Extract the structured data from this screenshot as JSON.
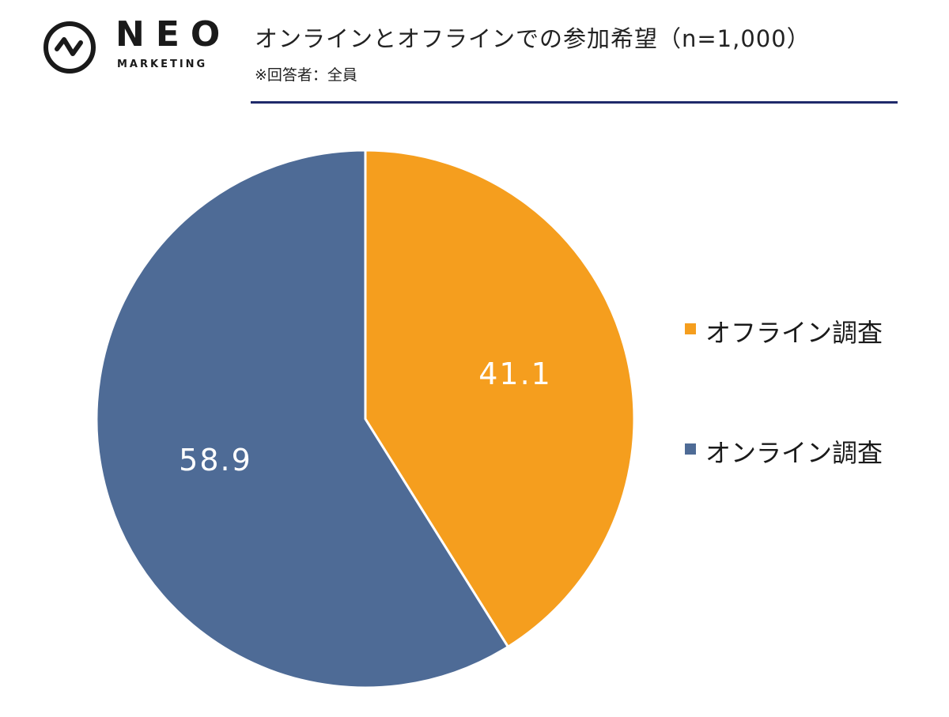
{
  "brand": {
    "name": "NEO",
    "tagline": "MARKETING"
  },
  "header": {
    "title": "オンラインとオフラインでの参加希望（n=1,000）",
    "subtitle": "※回答者：全員",
    "rule_color": "#1f2a6b"
  },
  "chart_data": {
    "type": "pie",
    "title": "オンラインとオフラインでの参加希望（n=1,000）",
    "legend_position": "right",
    "slices": [
      {
        "label": "オフライン調査",
        "value": 41.1,
        "color": "#f59e1e"
      },
      {
        "label": "オンライン調査",
        "value": 58.9,
        "color": "#4e6b96"
      }
    ],
    "start": "top",
    "direction": "clockwise"
  }
}
